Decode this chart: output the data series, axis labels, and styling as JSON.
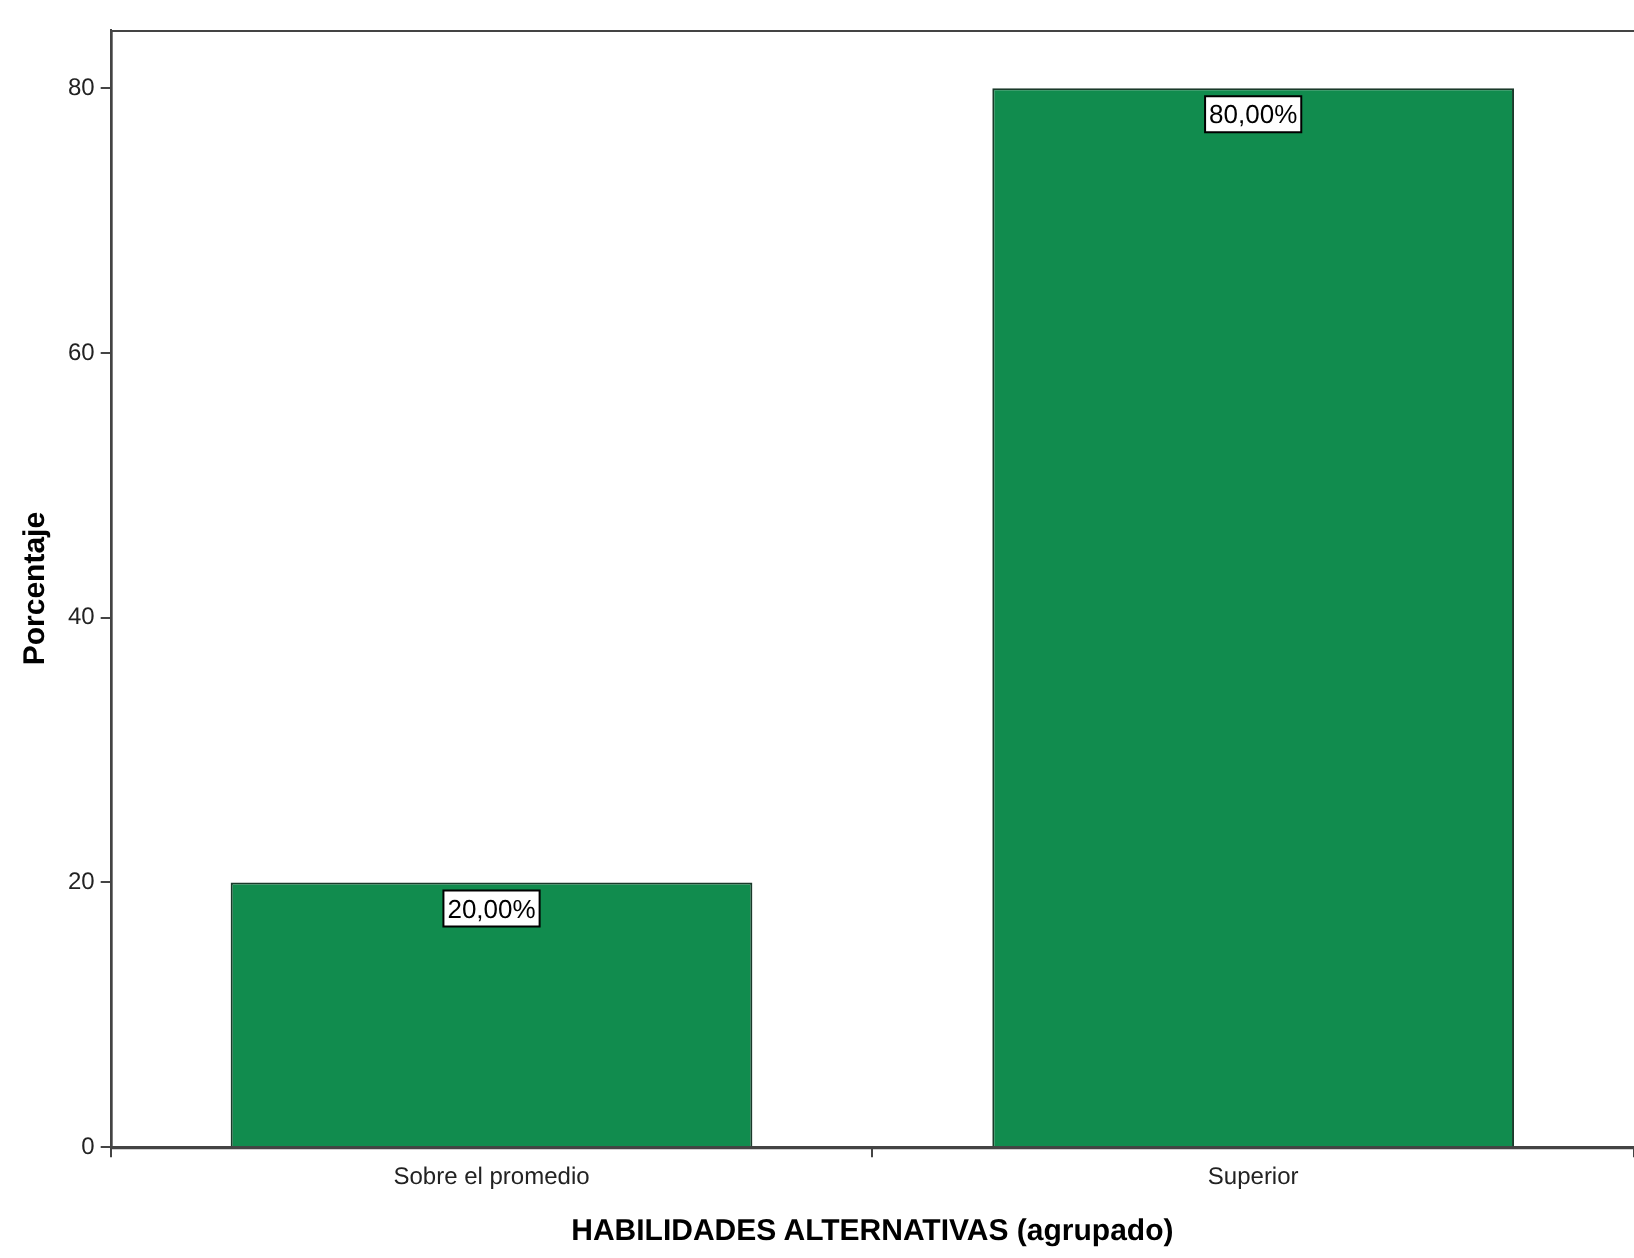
{
  "chart_data": {
    "type": "bar",
    "xlabel": "HABILIDADES ALTERNATIVAS (agrupado)",
    "ylabel": "Porcentaje",
    "categories": [
      "Sobre el promedio",
      "Superior"
    ],
    "values": [
      20,
      80
    ],
    "color": "#118c4e",
    "value_labels": [
      "20,00%",
      "80,00%"
    ],
    "ylim": [
      0,
      84.4
    ],
    "yticks": [
      0,
      20,
      40,
      60,
      80
    ]
  }
}
